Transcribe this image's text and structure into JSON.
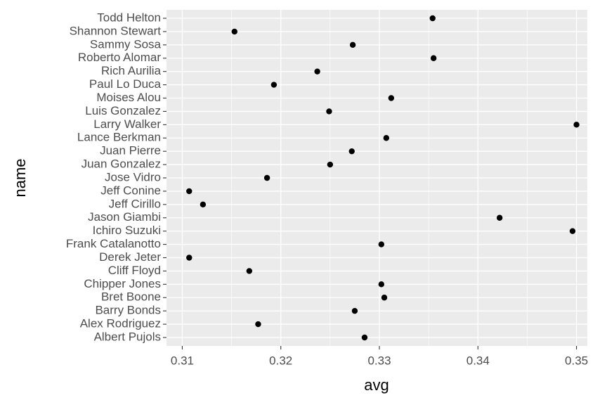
{
  "chart_data": {
    "type": "scatter",
    "x_label": "avg",
    "y_label": "name",
    "categories": [
      "Albert Pujols",
      "Alex Rodriguez",
      "Barry Bonds",
      "Bret Boone",
      "Chipper Jones",
      "Cliff Floyd",
      "Derek Jeter",
      "Frank Catalanotto",
      "Ichiro Suzuki",
      "Jason Giambi",
      "Jeff Cirillo",
      "Jeff Conine",
      "Jose Vidro",
      "Juan Gonzalez",
      "Juan Pierre",
      "Lance Berkman",
      "Larry Walker",
      "Luis Gonzalez",
      "Moises Alou",
      "Paul Lo Duca",
      "Rich Aurilia",
      "Roberto Alomar",
      "Sammy Sosa",
      "Shannon Stewart",
      "Todd Helton"
    ],
    "values": [
      0.3285,
      0.3177,
      0.3275,
      0.3305,
      0.3302,
      0.3168,
      0.3107,
      0.3302,
      0.3496,
      0.3422,
      0.3121,
      0.3107,
      0.3186,
      0.325,
      0.3272,
      0.3307,
      0.35,
      0.3249,
      0.3312,
      0.3193,
      0.3237,
      0.3355,
      0.3273,
      0.3153,
      0.3354
    ],
    "color": "#000000",
    "xlim": [
      0.3084,
      0.3511
    ],
    "xticks": [
      {
        "value": 0.31,
        "label": "0.31"
      },
      {
        "value": 0.32,
        "label": "0.32"
      },
      {
        "value": 0.33,
        "label": "0.33"
      },
      {
        "value": 0.34,
        "label": "0.34"
      },
      {
        "value": 0.35,
        "label": "0.35"
      }
    ],
    "grid": true
  }
}
